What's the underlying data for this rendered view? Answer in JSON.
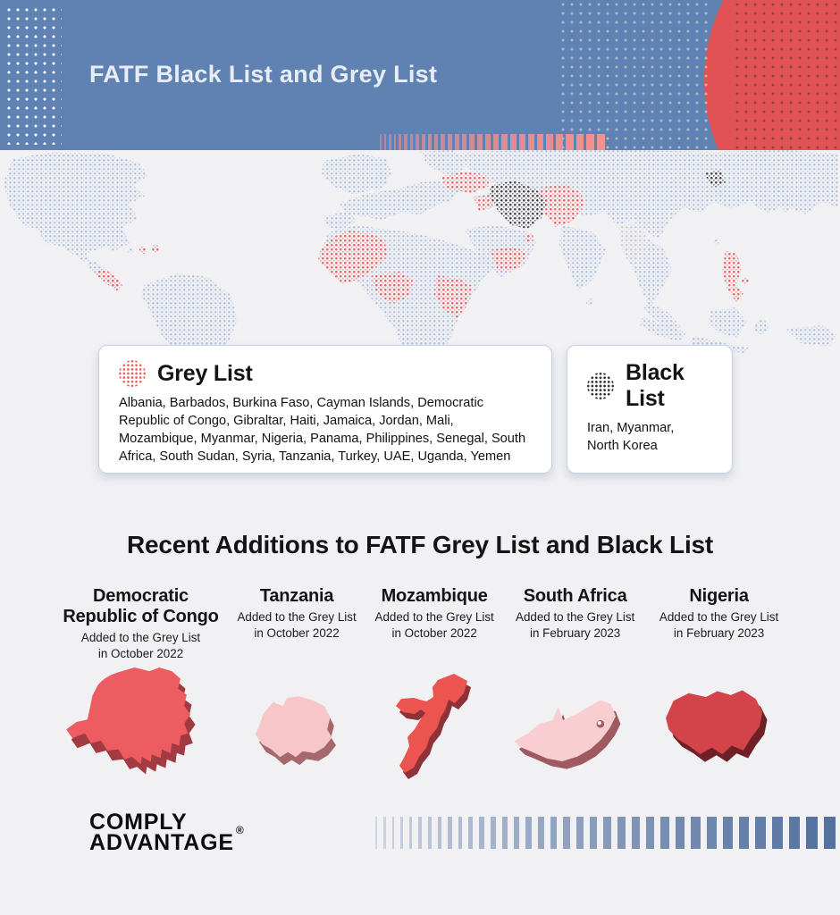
{
  "header": {
    "title": "FATF Black List and Grey List"
  },
  "legend": {
    "grey_list": {
      "title": "Grey List",
      "countries": "Albania, Barbados, Burkina Faso, Cayman Islands, Democratic Republic of Congo, Gibraltar, Haiti, Jamaica, Jordan, Mali, Mozambique, Myanmar, Nigeria, Panama, Philippines, Senegal, South Africa, South Sudan, Syria, Tanzania, Turkey, UAE, Uganda, Yemen"
    },
    "black_list": {
      "title": "Black List",
      "countries": "Iran, Myanmar,\nNorth Korea"
    }
  },
  "recent": {
    "section_title": "Recent Additions to FATF Grey List and Black List",
    "items": [
      {
        "name": "Democratic Republic of Congo",
        "note_line1": "Added to the Grey List",
        "note_line2": "in October 2022",
        "fill": "#ed5c60",
        "side": "#a23a41"
      },
      {
        "name": "Tanzania",
        "note_line1": "Added to the Grey List",
        "note_line2": "in October 2022",
        "fill": "#f7c6c8",
        "side": "#a5686d"
      },
      {
        "name": "Mozambique",
        "note_line1": "Added to the Grey List",
        "note_line2": "in October 2022",
        "fill": "#ec544f",
        "side": "#8e3138"
      },
      {
        "name": "South Africa",
        "note_line1": "Added to the Grey List",
        "note_line2": "in February 2023",
        "fill": "#f9ced2",
        "side": "#9d5a60"
      },
      {
        "name": "Nigeria",
        "note_line1": "Added to the Grey List",
        "note_line2": "in February 2023",
        "fill": "#d2444a",
        "side": "#6e2027"
      }
    ]
  },
  "footer": {
    "brand_line1": "COMPLY",
    "brand_line2": "ADVANTAGE",
    "registered_mark": "®"
  },
  "decor": {
    "header_bars": {
      "count": 30,
      "color": "#f2918f",
      "min_w": 2,
      "max_w": 9,
      "min_o": 0.5,
      "max_o": 1
    },
    "footer_bars": {
      "count": 36,
      "color": "#54719f",
      "min_w": 2,
      "max_w": 13,
      "min_o": 0.22,
      "max_o": 1
    },
    "map_colors": {
      "base": "#a9bddd",
      "grey_list": "#ea5e5e",
      "black_list": "#3c3c42",
      "myanmar_grey": "#c9c9d1"
    }
  },
  "colors": {
    "header_bg": "#5f82b2",
    "accent_red": "#e15254",
    "page_bg": "#f1f1f3",
    "card_border": "#c4d2e8"
  }
}
